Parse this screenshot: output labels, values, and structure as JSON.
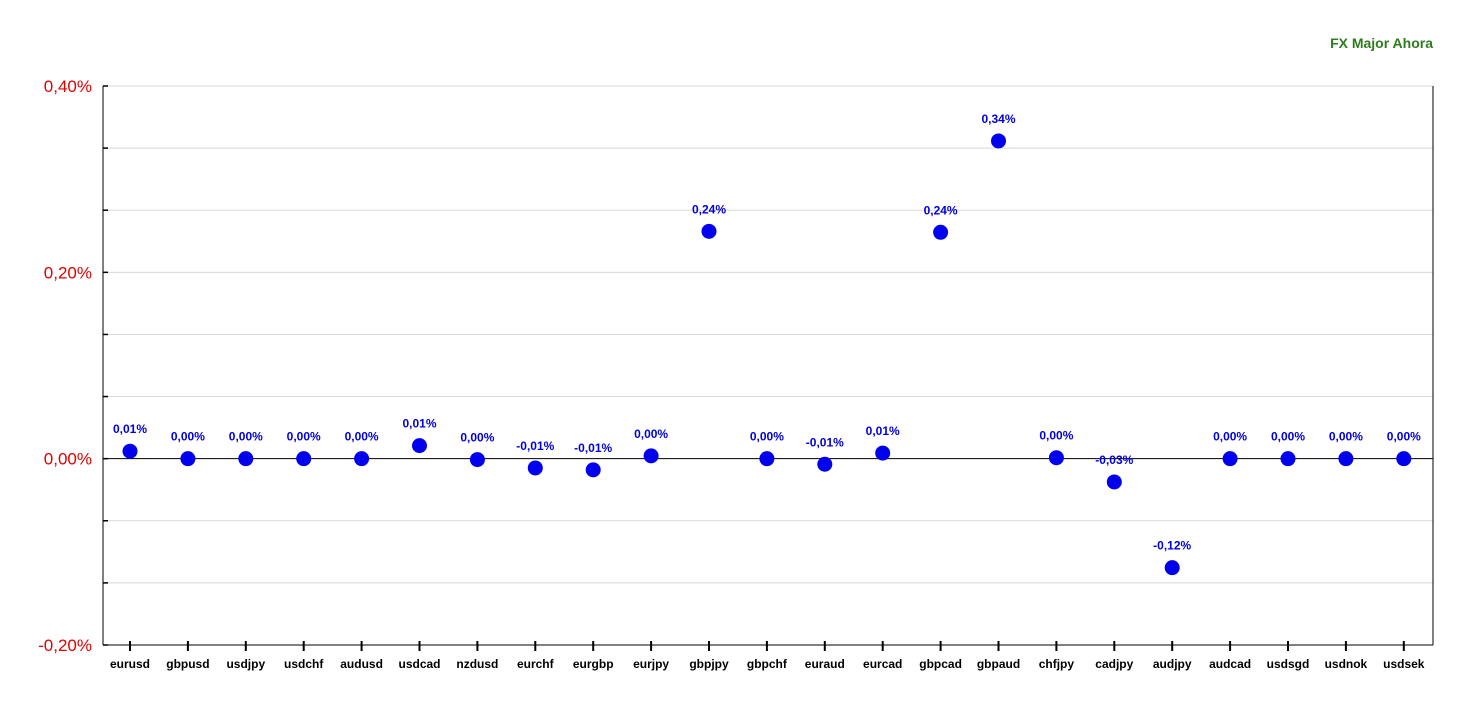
{
  "chart_data": {
    "type": "scatter",
    "title": "FX Major Ahora",
    "categories": [
      "eurusd",
      "gbpusd",
      "usdjpy",
      "usdchf",
      "audusd",
      "usdcad",
      "nzdusd",
      "eurchf",
      "eurgbp",
      "eurjpy",
      "gbpjpy",
      "gbpchf",
      "euraud",
      "eurcad",
      "gbpcad",
      "gbpaud",
      "chfjpy",
      "cadjpy",
      "audjpy",
      "audcad",
      "usdsgd",
      "usdnok",
      "usdsek"
    ],
    "values": [
      0.008,
      0.0,
      0.0,
      0.0,
      0.0,
      0.014,
      -0.001,
      -0.01,
      -0.012,
      0.003,
      0.244,
      0.0,
      -0.006,
      0.006,
      0.243,
      0.341,
      0.001,
      -0.025,
      -0.117,
      0.0,
      0.0,
      0.0,
      0.0
    ],
    "data_labels": [
      "0,01%",
      "0,00%",
      "0,00%",
      "0,00%",
      "0,00%",
      "0,01%",
      "0,00%",
      "-0,01%",
      "-0,01%",
      "0,00%",
      "0,24%",
      "0,00%",
      "-0,01%",
      "0,01%",
      "0,24%",
      "0,34%",
      "0,00%",
      "-0,03%",
      "-0,12%",
      "0,00%",
      "0,00%",
      "0,00%",
      "0,00%"
    ],
    "y_tick_labels": [
      "0,40%",
      "0,20%",
      "0,00%",
      "-0,20%"
    ],
    "y_tick_values": [
      0.4,
      0.2,
      0.0,
      -0.2
    ],
    "ylim": [
      -0.2,
      0.4
    ],
    "grid": true,
    "colors": {
      "marker": "#0000ee",
      "data_label": "#0000dd",
      "y_tick": "#e00000",
      "title": "#2e7d1e",
      "grid": "#d8d8d8"
    }
  }
}
